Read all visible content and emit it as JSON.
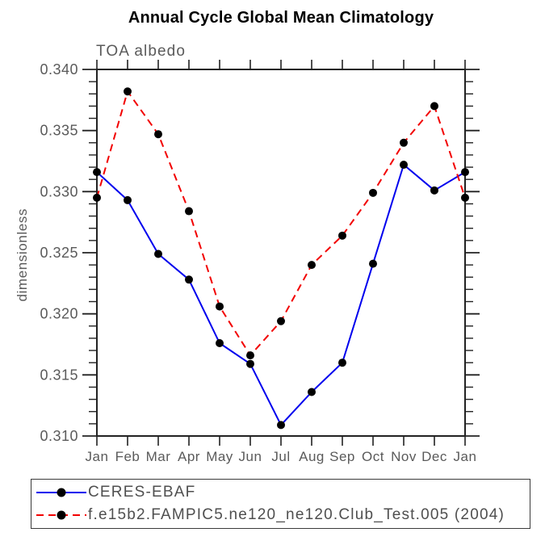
{
  "title": "Annual Cycle Global Mean Climatology",
  "subtitle": "TOA albedo",
  "y_axis_label": "dimensionless",
  "chart_data": {
    "type": "line",
    "categories": [
      "Jan",
      "Feb",
      "Mar",
      "Apr",
      "May",
      "Jun",
      "Jul",
      "Aug",
      "Sep",
      "Oct",
      "Nov",
      "Dec",
      "Jan"
    ],
    "series": [
      {
        "name": "CERES-EBAF",
        "color": "#0000ee",
        "line_style": "solid",
        "marker": "filled-circle",
        "marker_color": "#000000",
        "values": [
          0.3316,
          0.3293,
          0.3249,
          0.3228,
          0.3176,
          0.3159,
          0.3109,
          0.3136,
          0.316,
          0.3241,
          0.3322,
          0.3301,
          0.3316
        ]
      },
      {
        "name": "f.e15b2.FAMPIC5.ne120_ne120.Club_Test.005 (2004)",
        "color": "#f20000",
        "line_style": "dashed",
        "marker": "filled-circle",
        "marker_color": "#000000",
        "values": [
          0.3295,
          0.3382,
          0.3347,
          0.3284,
          0.3206,
          0.3166,
          0.3194,
          0.324,
          0.3264,
          0.3299,
          0.334,
          0.337,
          0.3295
        ]
      }
    ],
    "ylim": [
      0.31,
      0.34
    ],
    "y_major_step": 0.005,
    "y_minor_step": 0.001,
    "y_tick_labels": [
      "0.310",
      "0.315",
      "0.320",
      "0.325",
      "0.330",
      "0.335",
      "0.340"
    ],
    "xlabel": "",
    "ylabel": "dimensionless",
    "grid": false,
    "legend_position": "bottom-left",
    "axis_color": "#222222",
    "tick_label_color": "#5a5a5a"
  }
}
